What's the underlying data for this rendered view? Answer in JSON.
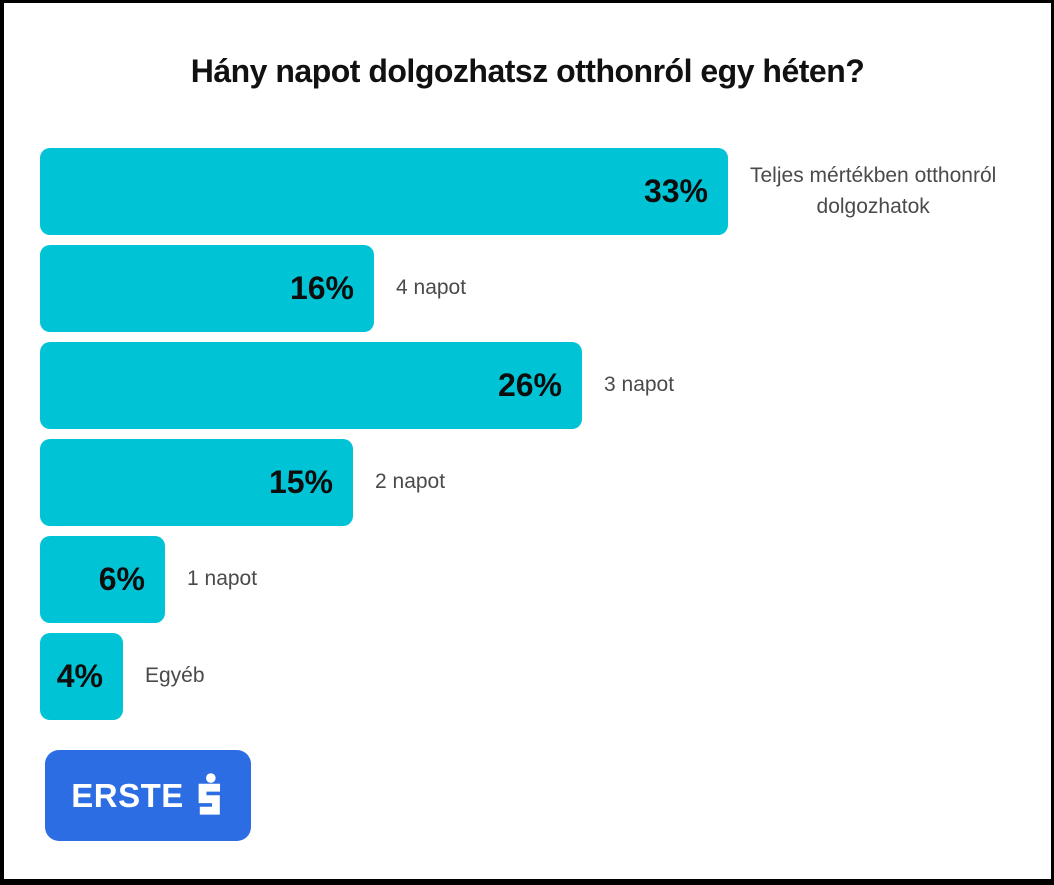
{
  "title": "Hány napot dolgozhatsz otthonról egy héten?",
  "chart_data": {
    "type": "bar",
    "orientation": "horizontal",
    "title": "Hány napot dolgozhatsz otthonról egy héten?",
    "categories": [
      "Teljes mértékben otthonról dolgozhatok",
      "4 napot",
      "3 napot",
      "2 napot",
      "1 napot",
      "Egyéb"
    ],
    "values": [
      33,
      16,
      26,
      15,
      6,
      4
    ],
    "value_suffix": "%",
    "xlim": [
      0,
      33
    ],
    "grid": false,
    "legend": "none",
    "bar_color": "#00C4D6",
    "bars": [
      {
        "value": 33,
        "value_label": "33%",
        "label": "Teljes mértékben otthonról\ndolgozhatok"
      },
      {
        "value": 16,
        "value_label": "16%",
        "label": "4 napot"
      },
      {
        "value": 26,
        "value_label": "26%",
        "label": "3 napot"
      },
      {
        "value": 15,
        "value_label": "15%",
        "label": "2 napot"
      },
      {
        "value": 6,
        "value_label": "6%",
        "label": "1 napot"
      },
      {
        "value": 4,
        "value_label": "4%",
        "label": "Egyéb"
      }
    ]
  },
  "logo": {
    "text": "ERSTE",
    "icon": "erste-sparkasse-s-icon",
    "brand_color": "#2D6DE3"
  },
  "colors": {
    "bar": "#00C4D6",
    "value_text": "#0d0d0d",
    "category_text": "#4a4a4a",
    "title_text": "#111111",
    "logo_background": "#2D6DE3",
    "logo_text": "#ffffff",
    "frame_border": "#000000",
    "background": "#ffffff"
  }
}
